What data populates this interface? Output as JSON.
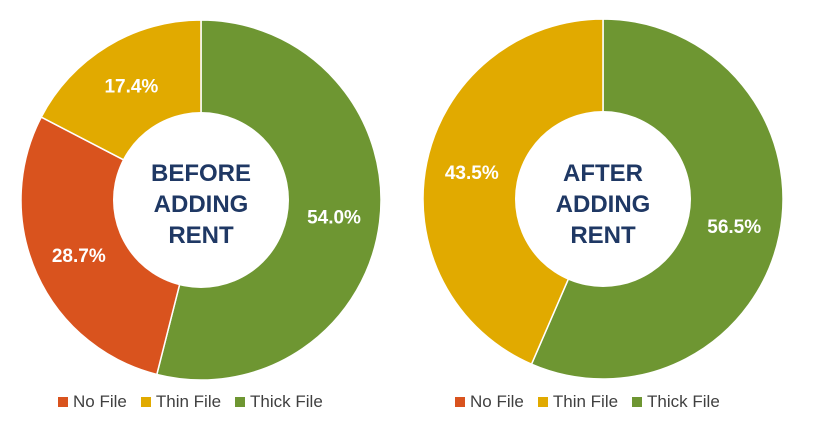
{
  "colors": {
    "no_file": "#d9531e",
    "thin_file": "#e1aa00",
    "thick_file": "#6e9632"
  },
  "chart_data": [
    {
      "type": "pie",
      "center_label": [
        "BEFORE",
        "ADDING",
        "RENT"
      ],
      "slices": [
        {
          "name": "Thick File",
          "value": 54.0,
          "label": "54.0%",
          "color": "#6e9632"
        },
        {
          "name": "No File",
          "value": 28.7,
          "label": "28.7%",
          "color": "#d9531e"
        },
        {
          "name": "Thin File",
          "value": 17.4,
          "label": "17.4%",
          "color": "#e1aa00"
        }
      ],
      "legend": [
        "No File",
        "Thin File",
        "Thick File"
      ],
      "legend_position": "bottom"
    },
    {
      "type": "pie",
      "center_label": [
        "AFTER",
        "ADDING",
        "RENT"
      ],
      "slices": [
        {
          "name": "Thick File",
          "value": 56.5,
          "label": "56.5%",
          "color": "#6e9632"
        },
        {
          "name": "Thin File",
          "value": 43.5,
          "label": "43.5%",
          "color": "#e1aa00"
        }
      ],
      "legend": [
        "No File",
        "Thin File",
        "Thick File"
      ],
      "legend_position": "bottom"
    }
  ]
}
